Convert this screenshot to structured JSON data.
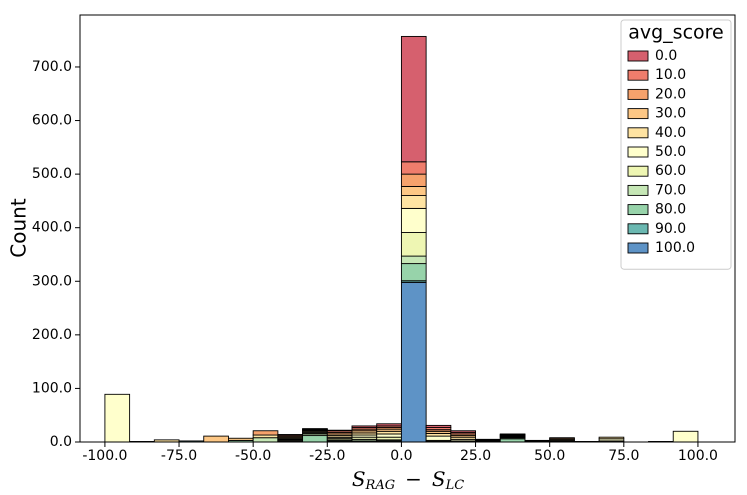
{
  "chart_data": {
    "type": "stacked_histogram",
    "x_label": [
      "S",
      "RAG",
      "−",
      "S",
      "LC"
    ],
    "y_label": "Count",
    "legend_title": "avg_score",
    "legend_position": "upper right",
    "bins": [
      -100,
      -91.667,
      -83.333,
      -75,
      -66.667,
      -58.333,
      -50,
      -41.667,
      -33.333,
      -25,
      -16.667,
      -8.333,
      0,
      8.333,
      16.667,
      25,
      33.333,
      41.667,
      50,
      58.333,
      66.667,
      75,
      83.333,
      91.667,
      100
    ],
    "xlim": [
      -108.4,
      112.5
    ],
    "ylim": [
      0,
      797
    ],
    "xticks": [
      {
        "value": -100,
        "label": "-100.0"
      },
      {
        "value": -75,
        "label": "-75.0"
      },
      {
        "value": -50,
        "label": "-50.0"
      },
      {
        "value": -25,
        "label": "-25.0"
      },
      {
        "value": 0,
        "label": "0.0"
      },
      {
        "value": 25,
        "label": "25.0"
      },
      {
        "value": 50,
        "label": "50.0"
      },
      {
        "value": 75,
        "label": "75.0"
      },
      {
        "value": 100,
        "label": "100.0"
      }
    ],
    "yticks": [
      {
        "value": 0,
        "label": "0.0"
      },
      {
        "value": 100,
        "label": "100.0"
      },
      {
        "value": 200,
        "label": "200.0"
      },
      {
        "value": 300,
        "label": "300.0"
      },
      {
        "value": 400,
        "label": "400.0"
      },
      {
        "value": 500,
        "label": "500.0"
      },
      {
        "value": 600,
        "label": "600.0"
      },
      {
        "value": 700,
        "label": "700.0"
      }
    ],
    "series": [
      {
        "name": "0.0",
        "color": "#d6606e",
        "values": [
          0,
          0,
          0,
          0,
          0,
          0,
          0,
          1,
          1,
          1,
          3,
          4,
          234,
          4,
          3,
          0,
          1,
          0,
          0,
          0,
          0,
          0,
          0,
          0
        ]
      },
      {
        "name": "10.0",
        "color": "#ef7d6c",
        "values": [
          0,
          0,
          0,
          0,
          0,
          0,
          0,
          2,
          1,
          3,
          3,
          3,
          23,
          4,
          3,
          1,
          1,
          0,
          0,
          0,
          0,
          0,
          0,
          0
        ]
      },
      {
        "name": "20.0",
        "color": "#f6a26c",
        "values": [
          0,
          0,
          0,
          0,
          0,
          0,
          8,
          2,
          1,
          3,
          3,
          3,
          23,
          3,
          3,
          1,
          1,
          1,
          2,
          0,
          0,
          0,
          0,
          0
        ]
      },
      {
        "name": "30.0",
        "color": "#fdc785",
        "values": [
          0,
          0,
          0,
          0,
          11,
          4,
          0,
          2,
          1,
          3,
          4,
          4,
          17,
          4,
          3,
          1,
          1,
          1,
          2,
          0,
          0,
          0,
          0,
          0
        ]
      },
      {
        "name": "40.0",
        "color": "#fee3a2",
        "values": [
          0,
          0,
          4,
          0,
          0,
          0,
          5,
          2,
          2,
          3,
          4,
          5,
          24,
          5,
          4,
          1,
          1,
          0,
          2,
          0,
          3,
          0,
          0,
          0
        ]
      },
      {
        "name": "50.0",
        "color": "#ffffcc",
        "values": [
          89,
          1,
          0,
          0,
          0,
          0,
          0,
          1,
          2,
          2,
          4,
          6,
          45,
          8,
          3,
          1,
          1,
          1,
          1,
          1,
          4,
          0,
          1,
          20
        ]
      },
      {
        "name": "60.0",
        "color": "#eef6b3",
        "values": [
          0,
          0,
          0,
          0,
          0,
          0,
          0,
          2,
          2,
          3,
          4,
          5,
          44,
          2,
          2,
          0,
          1,
          0,
          1,
          0,
          2,
          0,
          0,
          0
        ]
      },
      {
        "name": "70.0",
        "color": "#c6e7b6",
        "values": [
          0,
          0,
          0,
          0,
          0,
          0,
          8,
          2,
          3,
          2,
          3,
          2,
          14,
          1,
          0,
          0,
          2,
          0,
          0,
          0,
          0,
          0,
          0,
          0
        ]
      },
      {
        "name": "80.0",
        "color": "#97d3aa",
        "values": [
          0,
          0,
          0,
          0,
          0,
          3,
          0,
          0,
          12,
          2,
          2,
          2,
          32,
          0,
          0,
          0,
          6,
          0,
          0,
          0,
          0,
          0,
          0,
          0
        ]
      },
      {
        "name": "90.0",
        "color": "#6bb8b1",
        "values": [
          0,
          0,
          0,
          2,
          0,
          0,
          0,
          0,
          0,
          0,
          0,
          0,
          3,
          0,
          0,
          0,
          0,
          0,
          0,
          0,
          0,
          0,
          0,
          0
        ]
      },
      {
        "name": "100.0",
        "color": "#5e93c6",
        "values": [
          0,
          0,
          0,
          0,
          0,
          0,
          0,
          0,
          0,
          0,
          0,
          0,
          298,
          0,
          0,
          0,
          0,
          0,
          0,
          0,
          0,
          0,
          0,
          0
        ]
      }
    ]
  }
}
